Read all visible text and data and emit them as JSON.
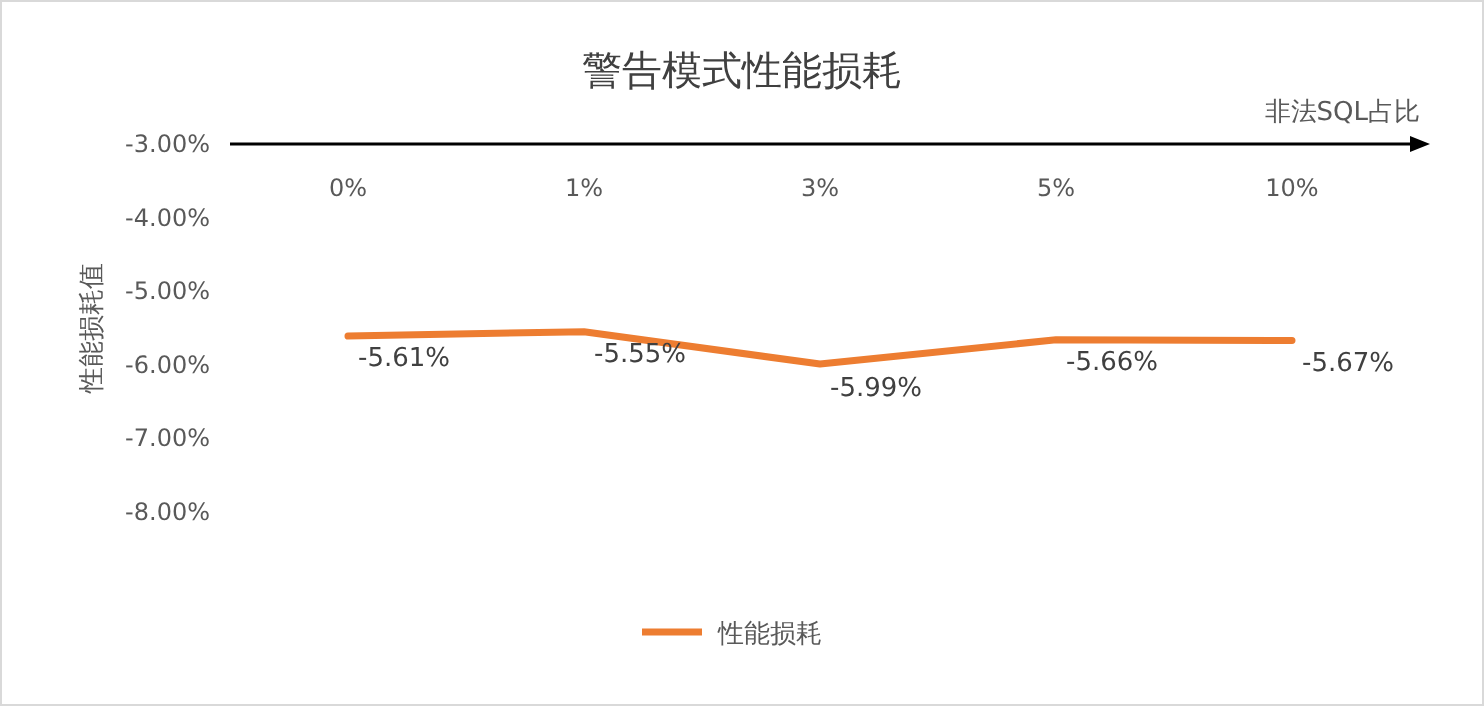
{
  "chart_data": {
    "type": "line",
    "title": "警告模式性能损耗",
    "xlabel": "非法SQL占比",
    "ylabel": "性能损耗值",
    "categories": [
      "0%",
      "1%",
      "3%",
      "5%",
      "10%"
    ],
    "series": [
      {
        "name": "性能损耗",
        "color": "#ed7d31",
        "values": [
          -5.61,
          -5.55,
          -5.99,
          -5.66,
          -5.67
        ],
        "value_labels": [
          "-5.61%",
          "-5.55%",
          "-5.99%",
          "-5.66%",
          "-5.67%"
        ]
      }
    ],
    "ylim": [
      -8,
      -3
    ],
    "yticks": [
      {
        "value": -3,
        "label": "-3.00%"
      },
      {
        "value": -4,
        "label": "-4.00%"
      },
      {
        "value": -5,
        "label": "-5.00%"
      },
      {
        "value": -6,
        "label": "-6.00%"
      },
      {
        "value": -7,
        "label": "-7.00%"
      },
      {
        "value": -8,
        "label": "-8.00%"
      }
    ],
    "grid": false,
    "legend": "bottom",
    "marker": "none",
    "line_style": "solid"
  }
}
